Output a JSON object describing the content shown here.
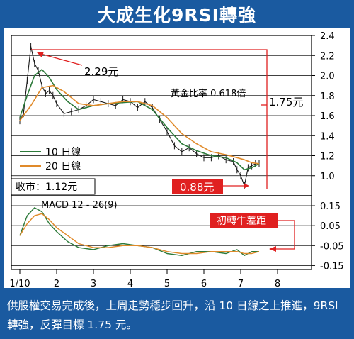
{
  "title": "大成生化9RSI轉強",
  "caption": "供股權交易完成後，上周走勢穩步回升，沿 10 日線之上推進，9RSI 轉強，反彈目標 1.75 元。",
  "colors": {
    "background": "#1a5aa0",
    "series_10": "#2d7a3a",
    "series_20": "#e08a2a",
    "highlight": "#e02020",
    "price": "#1a1a1a"
  },
  "chart_data": [
    {
      "type": "line",
      "title": "",
      "x_tick_labels": [
        "1/10",
        "2",
        "3",
        "4",
        "5",
        "6",
        "7",
        "8"
      ],
      "y_tick_labels": [
        "1.0",
        "1.2",
        "1.4",
        "1.6",
        "1.8",
        "2.0",
        "2.2",
        "2.4"
      ],
      "ylim": [
        0.8,
        2.4
      ],
      "grid": "horizontal",
      "legend": {
        "position": "bottom-left",
        "entries": [
          "10 日線",
          "20 日線"
        ]
      },
      "close_label": "收市：1.12元",
      "annotations": {
        "high": "2.29元",
        "fib": "黃金比率 0.618倍",
        "target": "1.75元",
        "low": "0.88元"
      },
      "series": [
        {
          "name": "price",
          "x": [
            1.0,
            1.1,
            1.2,
            1.3,
            1.4,
            1.5,
            1.6,
            1.7,
            1.8,
            1.9,
            2.0,
            2.2,
            2.4,
            2.6,
            2.8,
            3.0,
            3.2,
            3.4,
            3.6,
            3.8,
            4.0,
            4.2,
            4.4,
            4.6,
            4.8,
            5.0,
            5.2,
            5.4,
            5.6,
            5.8,
            6.0,
            6.2,
            6.4,
            6.6,
            6.8,
            6.9,
            7.0,
            7.1,
            7.2,
            7.3,
            7.4,
            7.5
          ],
          "values": [
            1.55,
            1.62,
            1.95,
            2.29,
            2.12,
            2.05,
            1.9,
            1.82,
            1.85,
            1.8,
            1.72,
            1.62,
            1.64,
            1.66,
            1.7,
            1.76,
            1.74,
            1.72,
            1.7,
            1.76,
            1.74,
            1.68,
            1.74,
            1.68,
            1.56,
            1.44,
            1.3,
            1.24,
            1.28,
            1.22,
            1.18,
            1.18,
            1.2,
            1.16,
            1.14,
            1.06,
            1.0,
            0.9,
            1.08,
            1.1,
            1.12,
            1.12
          ]
        },
        {
          "name": "10 日線",
          "x": [
            1.0,
            1.2,
            1.4,
            1.6,
            1.8,
            2.0,
            2.3,
            2.6,
            3.0,
            3.4,
            3.8,
            4.2,
            4.6,
            5.0,
            5.4,
            5.8,
            6.2,
            6.6,
            6.9,
            7.1,
            7.3,
            7.5
          ],
          "values": [
            1.58,
            1.8,
            2.0,
            2.06,
            1.98,
            1.86,
            1.74,
            1.66,
            1.7,
            1.72,
            1.73,
            1.74,
            1.66,
            1.48,
            1.32,
            1.25,
            1.2,
            1.18,
            1.13,
            1.06,
            1.08,
            1.12
          ]
        },
        {
          "name": "20 日線",
          "x": [
            1.0,
            1.3,
            1.6,
            1.9,
            2.2,
            2.6,
            3.0,
            3.4,
            3.8,
            4.2,
            4.6,
            5.0,
            5.4,
            5.8,
            6.2,
            6.6,
            6.9,
            7.1,
            7.3,
            7.5
          ],
          "values": [
            1.55,
            1.7,
            1.88,
            1.9,
            1.84,
            1.72,
            1.7,
            1.72,
            1.74,
            1.74,
            1.7,
            1.58,
            1.42,
            1.32,
            1.24,
            1.21,
            1.18,
            1.16,
            1.13,
            1.12
          ]
        }
      ]
    },
    {
      "type": "line",
      "title": "MACD 12 - 26(9)",
      "y_tick_labels": [
        "0.15",
        "0.05",
        "-0.05",
        "-0.15"
      ],
      "ylim": [
        -0.17,
        0.2
      ],
      "annotation": "初轉牛差距",
      "series": [
        {
          "name": "macd",
          "x": [
            1.0,
            1.2,
            1.4,
            1.6,
            1.8,
            2.0,
            2.3,
            2.6,
            3.0,
            3.4,
            3.8,
            4.2,
            4.6,
            5.0,
            5.4,
            5.8,
            6.2,
            6.6,
            6.9,
            7.1,
            7.3,
            7.5
          ],
          "values": [
            0.0,
            0.1,
            0.14,
            0.12,
            0.06,
            0.02,
            -0.03,
            -0.06,
            -0.07,
            -0.05,
            -0.04,
            -0.05,
            -0.06,
            -0.09,
            -0.1,
            -0.08,
            -0.08,
            -0.09,
            -0.07,
            -0.1,
            -0.08,
            -0.08
          ]
        },
        {
          "name": "signal",
          "x": [
            1.0,
            1.2,
            1.4,
            1.6,
            1.8,
            2.0,
            2.3,
            2.6,
            3.0,
            3.4,
            3.8,
            4.2,
            4.6,
            5.0,
            5.4,
            5.8,
            6.2,
            6.6,
            6.9,
            7.1,
            7.3,
            7.5
          ],
          "values": [
            0.0,
            0.06,
            0.1,
            0.11,
            0.08,
            0.04,
            0.0,
            -0.04,
            -0.06,
            -0.06,
            -0.05,
            -0.05,
            -0.06,
            -0.08,
            -0.09,
            -0.09,
            -0.08,
            -0.08,
            -0.08,
            -0.09,
            -0.09,
            -0.08
          ]
        }
      ]
    }
  ]
}
